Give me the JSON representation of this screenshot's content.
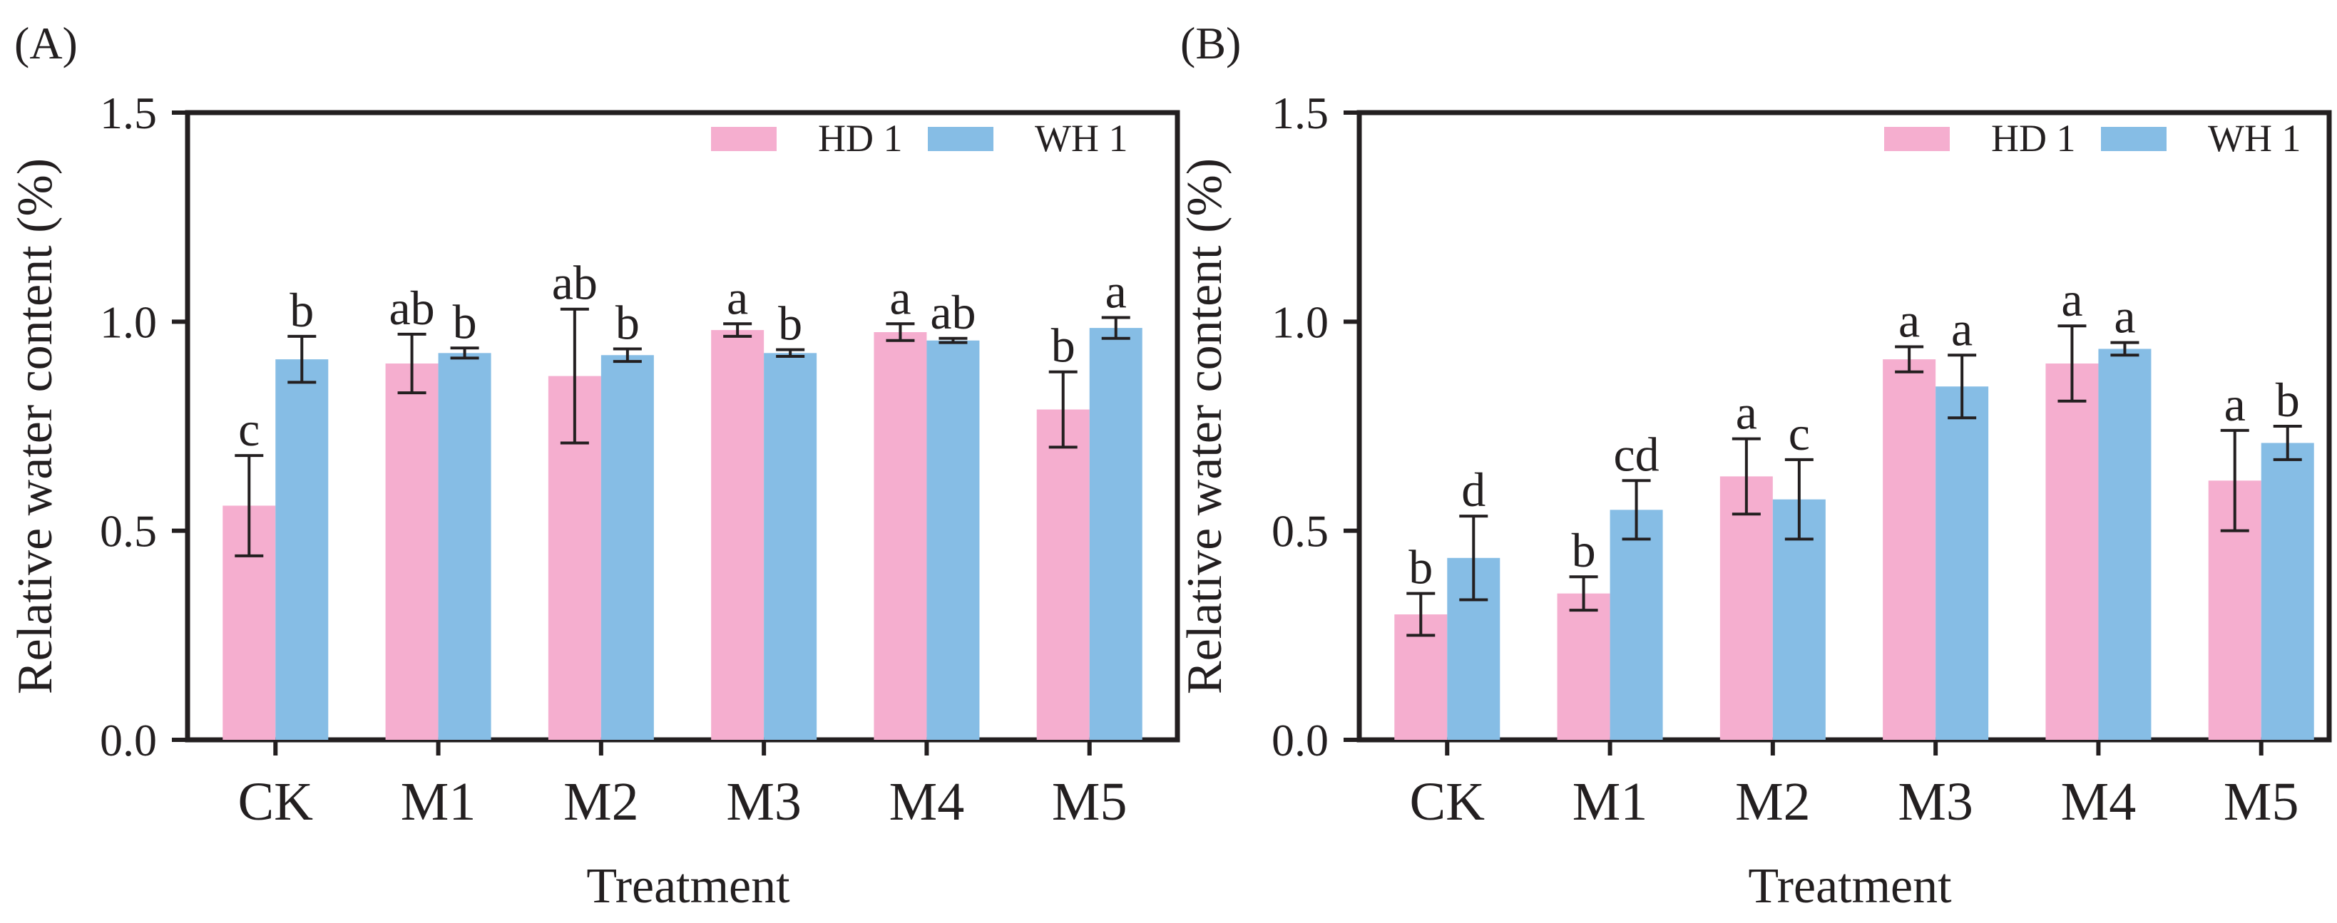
{
  "chart_data": [
    {
      "panel": "(A)",
      "type": "bar",
      "title": "",
      "xlabel": "Treatment",
      "ylabel": "Relative water content (%)",
      "ylim": [
        0,
        1.5
      ],
      "yticks": [
        "0.0",
        "0.5",
        "1.0",
        "1.5"
      ],
      "categories": [
        "CK",
        "M1",
        "M2",
        "M3",
        "M4",
        "M5"
      ],
      "legend_position": "top-right",
      "series": [
        {
          "name": "HD 1",
          "color": "#f5aecf",
          "values": [
            0.56,
            0.9,
            0.87,
            0.98,
            0.975,
            0.79
          ],
          "errors": [
            0.12,
            0.07,
            0.16,
            0.015,
            0.02,
            0.09
          ],
          "letters": [
            "c",
            "ab",
            "ab",
            "a",
            "a",
            "b"
          ]
        },
        {
          "name": "WH 1",
          "color": "#86bde5",
          "values": [
            0.91,
            0.925,
            0.92,
            0.925,
            0.955,
            0.985
          ],
          "errors": [
            0.055,
            0.012,
            0.015,
            0.008,
            0.005,
            0.025
          ],
          "letters": [
            "b",
            "b",
            "b",
            "b",
            "ab",
            "a"
          ]
        }
      ]
    },
    {
      "panel": "(B)",
      "type": "bar",
      "title": "",
      "xlabel": "Treatment",
      "ylabel": "Relative water content (%)",
      "ylim": [
        0,
        1.5
      ],
      "yticks": [
        "0.0",
        "0.5",
        "1.0",
        "1.5"
      ],
      "categories": [
        "CK",
        "M1",
        "M2",
        "M3",
        "M4",
        "M5"
      ],
      "legend_position": "top-right",
      "series": [
        {
          "name": "HD 1",
          "color": "#f5aecf",
          "values": [
            0.3,
            0.35,
            0.63,
            0.91,
            0.9,
            0.62
          ],
          "errors": [
            0.05,
            0.04,
            0.09,
            0.03,
            0.09,
            0.12
          ],
          "letters": [
            "b",
            "b",
            "a",
            "a",
            "a",
            "a"
          ]
        },
        {
          "name": "WH 1",
          "color": "#86bde5",
          "values": [
            0.435,
            0.55,
            0.575,
            0.845,
            0.935,
            0.71
          ],
          "errors": [
            0.1,
            0.07,
            0.095,
            0.075,
            0.015,
            0.04
          ],
          "letters": [
            "d",
            "cd",
            "c",
            "a",
            "a",
            "b"
          ]
        }
      ]
    }
  ]
}
